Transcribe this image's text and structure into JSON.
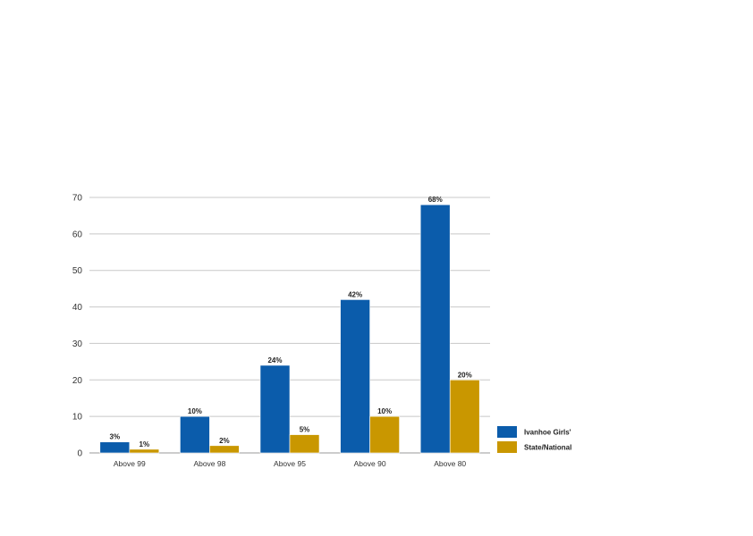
{
  "chart_data": {
    "type": "bar",
    "categories": [
      "Above 99",
      "Above 98",
      "Above 95",
      "Above 90",
      "Above 80"
    ],
    "series": [
      {
        "name": "Ivanhoe Girls'",
        "values": [
          3,
          10,
          24,
          42,
          68
        ],
        "labels": [
          "3%",
          "10%",
          "24%",
          "42%",
          "68%"
        ],
        "color": "#0b5cab"
      },
      {
        "name": "State/National",
        "values": [
          1,
          2,
          5,
          10,
          20
        ],
        "labels": [
          "1%",
          "2%",
          "5%",
          "10%",
          "20%"
        ],
        "color": "#c99700"
      }
    ],
    "title": "",
    "xlabel": "",
    "ylabel": "",
    "ylim": [
      0,
      70
    ],
    "yticks": [
      0,
      10,
      20,
      30,
      40,
      50,
      60,
      70
    ],
    "grid": true,
    "legend_position": "right"
  }
}
